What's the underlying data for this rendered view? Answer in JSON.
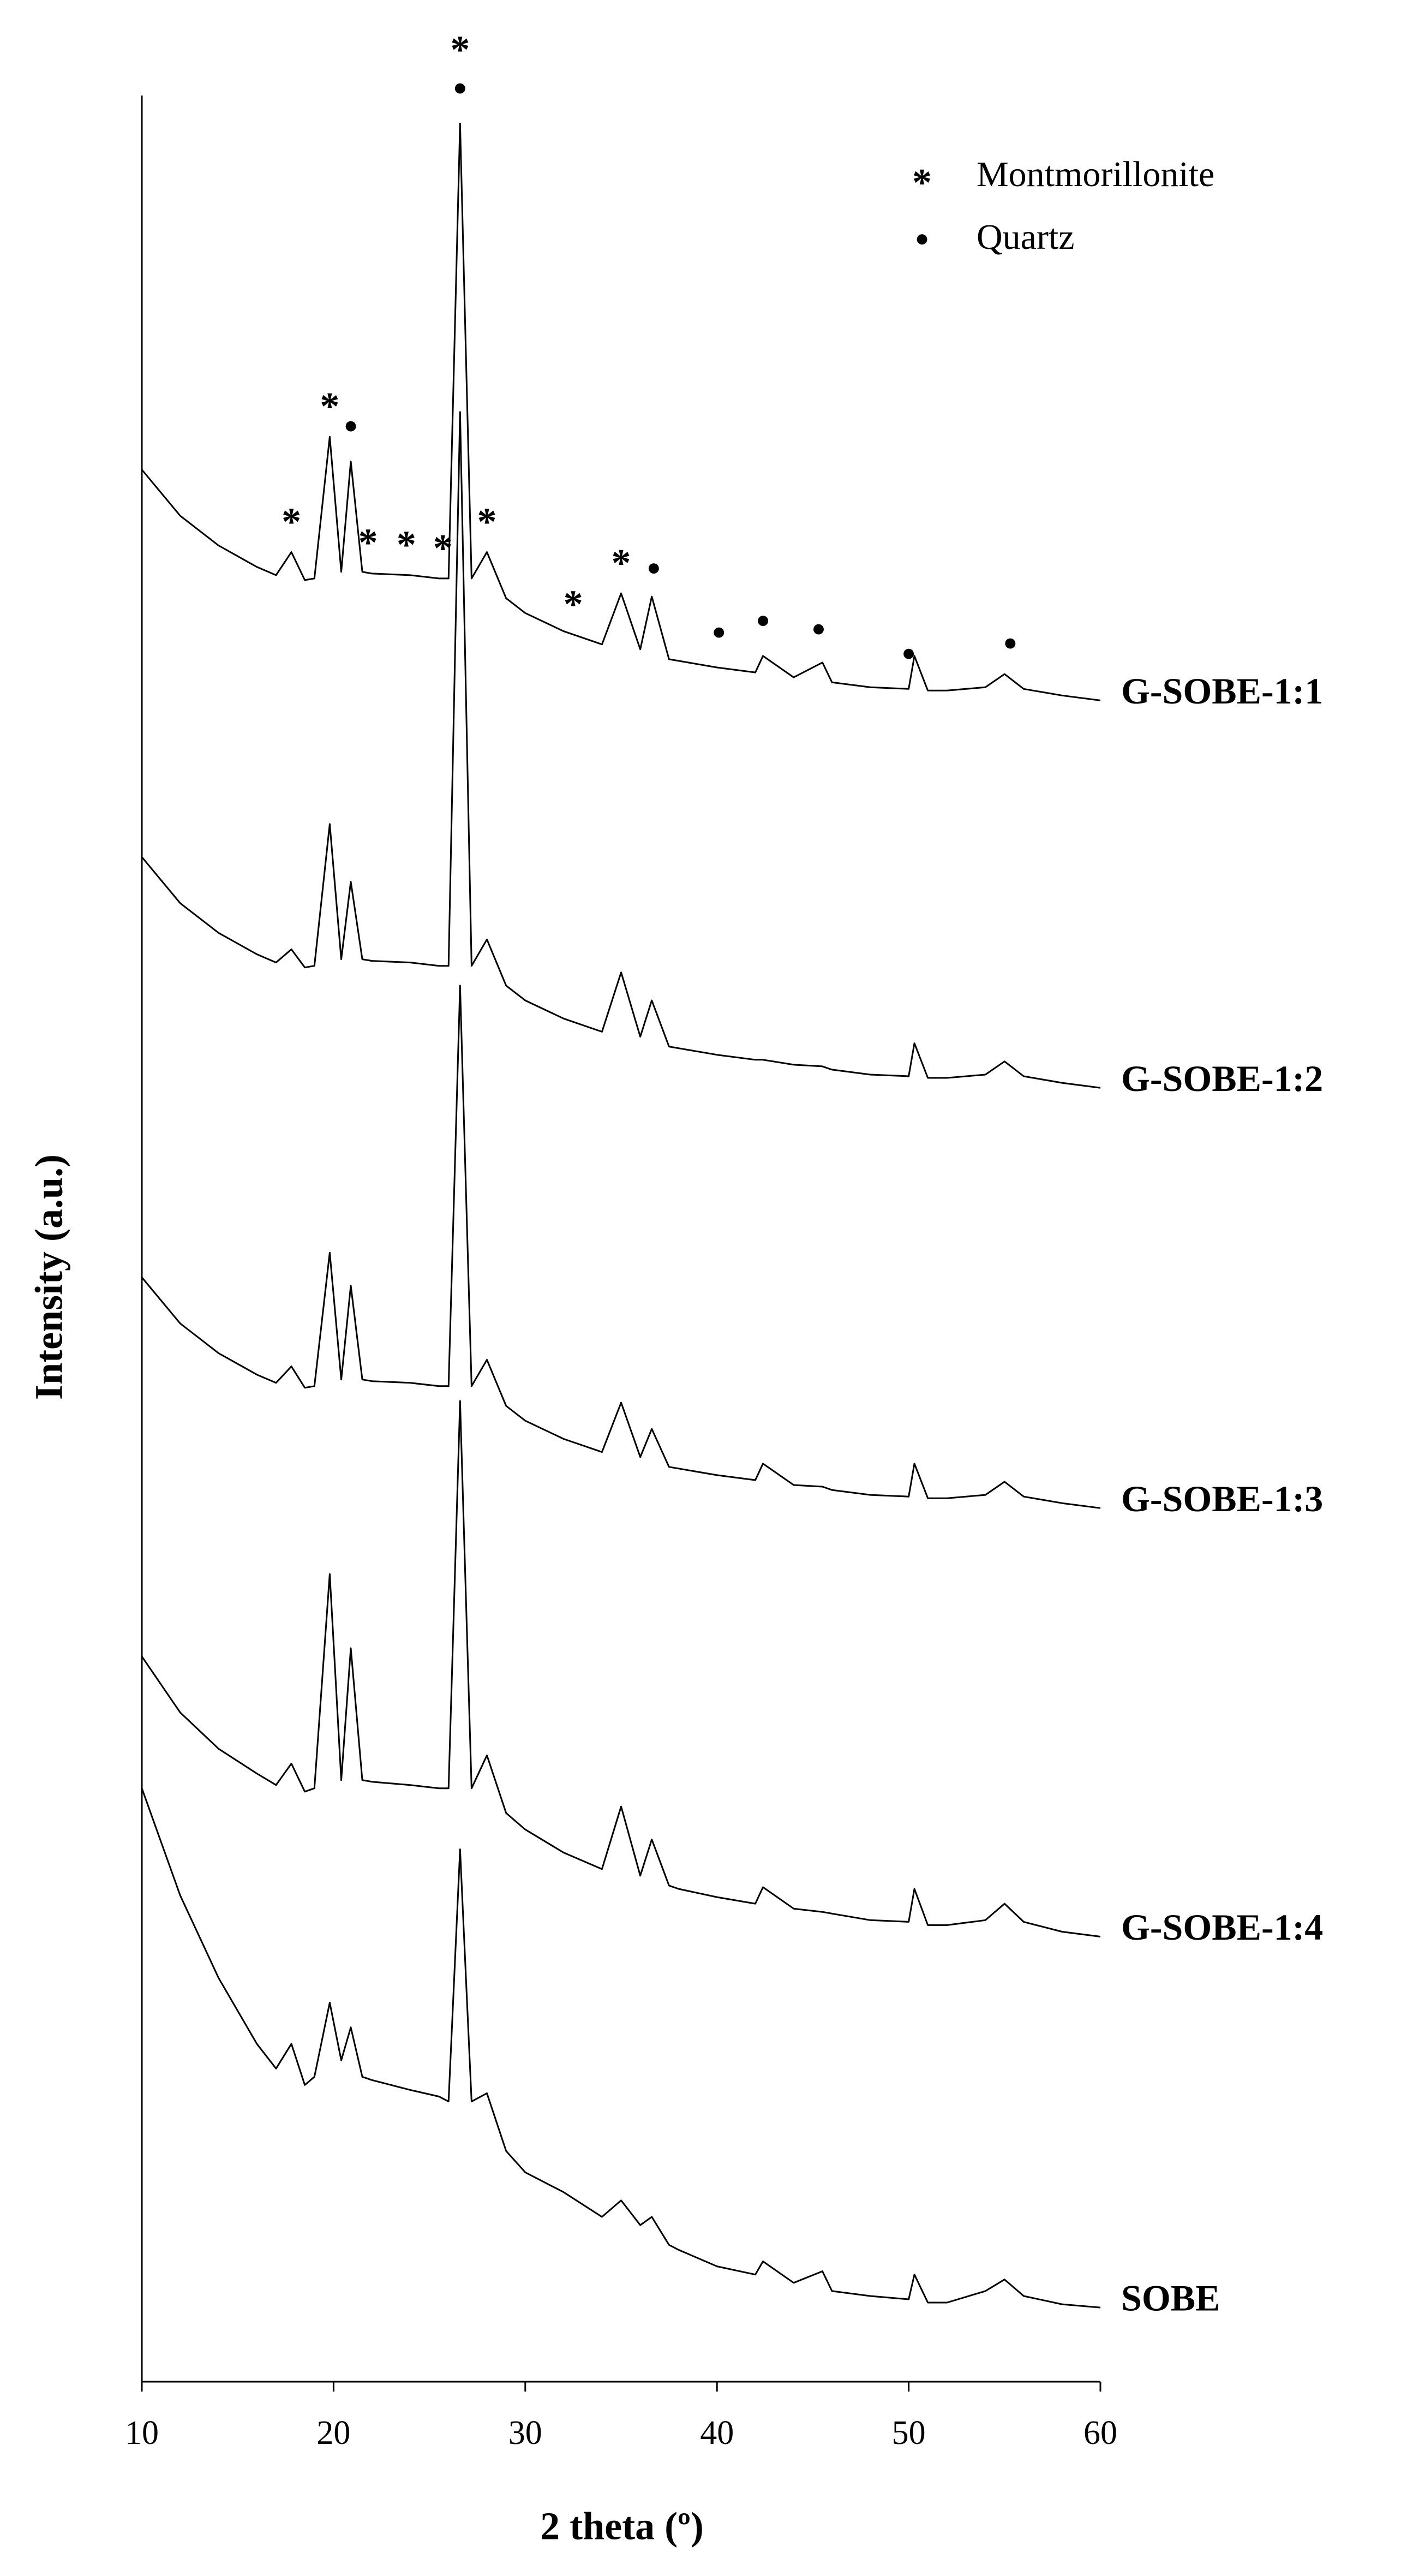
{
  "chart_data": {
    "type": "line",
    "y_label": "Intensity (a.u.)",
    "x_label": "2 theta (º)",
    "xlim": [
      10,
      60
    ],
    "xticks": [
      10,
      20,
      30,
      40,
      50,
      60
    ],
    "ylim": [
      0,
      1387
    ],
    "x": [
      10,
      12,
      14,
      16,
      17,
      17.8,
      18.5,
      19,
      19.8,
      20.4,
      20.9,
      21.5,
      22,
      24,
      25.5,
      26,
      26.6,
      27.2,
      28,
      29,
      30,
      32,
      34,
      35,
      36,
      36.6,
      37.5,
      38,
      40,
      42,
      42.4,
      44,
      45.5,
      46,
      48,
      50,
      50.3,
      51,
      52,
      54,
      55,
      56,
      58,
      60
    ],
    "series": [
      {
        "name": "G-SOBE-1:1",
        "color": "#000000",
        "values": [
          1160,
          1132,
          1114,
          1101,
          1096,
          1110,
          1093,
          1094,
          1180,
          1098,
          1165,
          1098,
          1097,
          1096,
          1094,
          1094,
          1370,
          1094,
          1110,
          1082,
          1073,
          1062,
          1054,
          1085,
          1051,
          1083,
          1045,
          1044,
          1040,
          1037,
          1047,
          1034,
          1043,
          1031,
          1028,
          1027,
          1047,
          1026,
          1026,
          1028,
          1036,
          1027,
          1023,
          1020
        ]
      },
      {
        "name": "G-SOBE-1:2",
        "color": "#000000",
        "values": [
          925,
          897,
          879,
          866,
          861,
          869,
          858,
          859,
          945,
          863,
          910,
          863,
          862,
          861,
          859,
          859,
          1195,
          859,
          875,
          847,
          838,
          827,
          819,
          855,
          816,
          838,
          810,
          809,
          805,
          802,
          802,
          799,
          798,
          796,
          793,
          792,
          812,
          791,
          791,
          793,
          801,
          792,
          788,
          785
        ]
      },
      {
        "name": "G-SOBE-1:3",
        "color": "#000000",
        "values": [
          670,
          642,
          624,
          611,
          606,
          616,
          603,
          604,
          685,
          608,
          665,
          608,
          607,
          606,
          604,
          604,
          847,
          604,
          620,
          592,
          583,
          572,
          564,
          594,
          561,
          578,
          555,
          554,
          550,
          547,
          557,
          544,
          543,
          541,
          538,
          537,
          557,
          536,
          536,
          538,
          546,
          537,
          533,
          530
        ]
      },
      {
        "name": "G-SOBE-1:4",
        "color": "#000000",
        "values": [
          440,
          406,
          384,
          369,
          362,
          375,
          358,
          360,
          490,
          365,
          445,
          365,
          364,
          362,
          360,
          360,
          595,
          360,
          380,
          345,
          335,
          321,
          311,
          349,
          307,
          329,
          301,
          299,
          294,
          290,
          300,
          287,
          285,
          284,
          280,
          279,
          299,
          277,
          277,
          280,
          290,
          279,
          273,
          270
        ]
      },
      {
        "name": "SOBE",
        "color": "#000000",
        "values": [
          360,
          295,
          245,
          205,
          190,
          205,
          180,
          185,
          230,
          195,
          215,
          185,
          183,
          177,
          173,
          170,
          323,
          170,
          175,
          140,
          127,
          115,
          100,
          110,
          95,
          100,
          83,
          80,
          70,
          65,
          73,
          60,
          67,
          55,
          52,
          50,
          65,
          48,
          48,
          55,
          62,
          52,
          47,
          45
        ]
      }
    ],
    "markers": [
      {
        "x": 17.8,
        "symbol": "*"
      },
      {
        "x": 19.8,
        "symbol": "*"
      },
      {
        "x": 20.9,
        "symbol": "●"
      },
      {
        "x": 21.8,
        "symbol": "*"
      },
      {
        "x": 23.8,
        "symbol": "*"
      },
      {
        "x": 25.7,
        "symbol": "*"
      },
      {
        "x": 26.6,
        "symbol": "●"
      },
      {
        "x": 26.6,
        "symbol": "*"
      },
      {
        "x": 28,
        "symbol": "*"
      },
      {
        "x": 32.5,
        "symbol": "*"
      },
      {
        "x": 35,
        "symbol": "*"
      },
      {
        "x": 36.7,
        "symbol": "●"
      },
      {
        "x": 40.1,
        "symbol": "●"
      },
      {
        "x": 42.4,
        "symbol": "●"
      },
      {
        "x": 45.3,
        "symbol": "●"
      },
      {
        "x": 50,
        "symbol": "●"
      },
      {
        "x": 55.3,
        "symbol": "●"
      }
    ],
    "legend": [
      {
        "symbol": "*",
        "label": "Montmorillonite"
      },
      {
        "symbol": "●",
        "label": "Quartz"
      }
    ]
  }
}
